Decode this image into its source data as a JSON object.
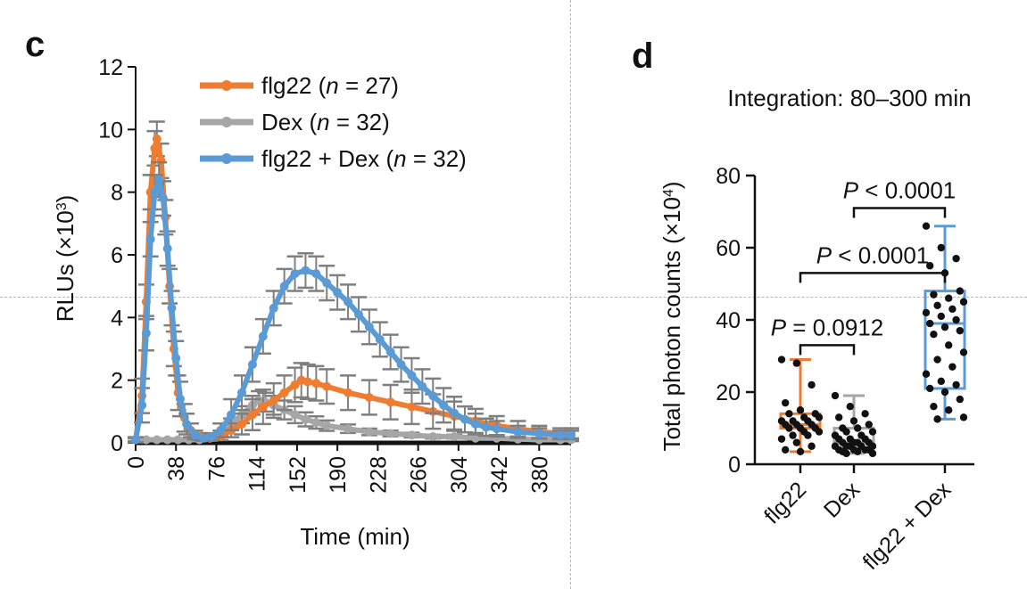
{
  "panels": {
    "c": {
      "letter": "c"
    },
    "d": {
      "letter": "d",
      "subtitle": "Integration: 80–300 min"
    }
  },
  "colors": {
    "flg22": "#ee7d32",
    "dex": "#a6a6a6",
    "flg22_dex": "#5b9bd5",
    "axis": "#111111"
  },
  "chart_data": [
    {
      "type": "line",
      "panel": "c",
      "xlabel": "Time (min)",
      "ylabel": "RLUs (×10³)",
      "ylabel_main": "RLUs (×10",
      "ylabel_sup": "3",
      "ylabel_tail": ")",
      "xlim": [
        0,
        410
      ],
      "ylim": [
        0,
        12
      ],
      "xticks": [
        0,
        38,
        76,
        114,
        152,
        190,
        228,
        266,
        304,
        342,
        380
      ],
      "yticks": [
        0,
        2,
        4,
        6,
        8,
        10,
        12
      ],
      "legend_position": "top-right",
      "series": [
        {
          "key": "flg22",
          "name": "flg22 (n = 27)",
          "label_pre": "flg22 (",
          "label_n": "n",
          "label_post": " = 27)",
          "color": "#ee7d32",
          "points": [
            [
              0,
              0.1
            ],
            [
              6,
              1.5
            ],
            [
              10,
              4.5
            ],
            [
              14,
              8.0
            ],
            [
              18,
              9.4
            ],
            [
              20,
              9.7
            ],
            [
              24,
              9.0
            ],
            [
              28,
              7.2
            ],
            [
              32,
              5.0
            ],
            [
              36,
              3.0
            ],
            [
              40,
              1.6
            ],
            [
              46,
              0.8
            ],
            [
              52,
              0.4
            ],
            [
              60,
              0.2
            ],
            [
              70,
              0.15
            ],
            [
              80,
              0.2
            ],
            [
              90,
              0.4
            ],
            [
              100,
              0.6
            ],
            [
              110,
              0.9
            ],
            [
              120,
              1.15
            ],
            [
              130,
              1.35
            ],
            [
              140,
              1.6
            ],
            [
              150,
              1.85
            ],
            [
              156,
              2.0
            ],
            [
              162,
              1.95
            ],
            [
              170,
              1.9
            ],
            [
              180,
              1.8
            ],
            [
              200,
              1.6
            ],
            [
              220,
              1.45
            ],
            [
              240,
              1.3
            ],
            [
              260,
              1.15
            ],
            [
              280,
              1.0
            ],
            [
              300,
              0.85
            ],
            [
              320,
              0.7
            ],
            [
              340,
              0.55
            ],
            [
              360,
              0.45
            ],
            [
              380,
              0.35
            ],
            [
              400,
              0.3
            ],
            [
              410,
              0.3
            ]
          ],
          "error": 0.55
        },
        {
          "key": "dex",
          "name": "Dex (n = 32)",
          "label_pre": "Dex (",
          "label_n": "n",
          "label_post": " = 32)",
          "color": "#a6a6a6",
          "points": [
            [
              0,
              0.1
            ],
            [
              10,
              0.1
            ],
            [
              20,
              0.1
            ],
            [
              30,
              0.1
            ],
            [
              40,
              0.1
            ],
            [
              50,
              0.1
            ],
            [
              60,
              0.1
            ],
            [
              70,
              0.15
            ],
            [
              80,
              0.3
            ],
            [
              90,
              0.6
            ],
            [
              100,
              0.9
            ],
            [
              110,
              1.2
            ],
            [
              116,
              1.35
            ],
            [
              122,
              1.3
            ],
            [
              130,
              1.2
            ],
            [
              140,
              1.05
            ],
            [
              150,
              0.9
            ],
            [
              160,
              0.75
            ],
            [
              170,
              0.65
            ],
            [
              180,
              0.55
            ],
            [
              200,
              0.45
            ],
            [
              220,
              0.35
            ],
            [
              240,
              0.3
            ],
            [
              260,
              0.25
            ],
            [
              280,
              0.2
            ],
            [
              300,
              0.2
            ],
            [
              320,
              0.15
            ],
            [
              340,
              0.15
            ],
            [
              360,
              0.12
            ],
            [
              380,
              0.1
            ],
            [
              400,
              0.1
            ],
            [
              410,
              0.1
            ]
          ],
          "error": 0.3
        },
        {
          "key": "flg22_dex",
          "name": "flg22 + Dex (n = 32)",
          "label_pre": "flg22 + Dex (",
          "label_n": "n",
          "label_post": " = 32)",
          "color": "#5b9bd5",
          "points": [
            [
              0,
              0.1
            ],
            [
              6,
              1.2
            ],
            [
              10,
              3.5
            ],
            [
              14,
              6.5
            ],
            [
              18,
              8.0
            ],
            [
              22,
              8.4
            ],
            [
              26,
              7.8
            ],
            [
              30,
              6.2
            ],
            [
              34,
              4.3
            ],
            [
              38,
              2.7
            ],
            [
              42,
              1.4
            ],
            [
              48,
              0.6
            ],
            [
              56,
              0.25
            ],
            [
              64,
              0.15
            ],
            [
              72,
              0.2
            ],
            [
              80,
              0.4
            ],
            [
              90,
              0.9
            ],
            [
              100,
              1.6
            ],
            [
              110,
              2.5
            ],
            [
              120,
              3.4
            ],
            [
              130,
              4.3
            ],
            [
              140,
              5.0
            ],
            [
              150,
              5.4
            ],
            [
              160,
              5.5
            ],
            [
              170,
              5.4
            ],
            [
              180,
              5.1
            ],
            [
              190,
              4.8
            ],
            [
              200,
              4.5
            ],
            [
              210,
              4.1
            ],
            [
              220,
              3.7
            ],
            [
              230,
              3.3
            ],
            [
              240,
              2.9
            ],
            [
              250,
              2.5
            ],
            [
              260,
              2.15
            ],
            [
              270,
              1.8
            ],
            [
              280,
              1.5
            ],
            [
              290,
              1.2
            ],
            [
              300,
              0.95
            ],
            [
              310,
              0.75
            ],
            [
              320,
              0.6
            ],
            [
              330,
              0.5
            ],
            [
              340,
              0.45
            ],
            [
              360,
              0.35
            ],
            [
              380,
              0.3
            ],
            [
              400,
              0.25
            ],
            [
              410,
              0.25
            ]
          ],
          "error": 0.55
        }
      ]
    },
    {
      "type": "box",
      "panel": "d",
      "ylabel": "Total photon counts (×10⁴)",
      "ylabel_main": "Total photon counts (×10",
      "ylabel_sup": "4",
      "ylabel_tail": ")",
      "ylim": [
        0,
        80
      ],
      "yticks": [
        0,
        20,
        40,
        60,
        80
      ],
      "categories": [
        "flg22",
        "Dex",
        "flg22 + Dex"
      ],
      "groups": [
        {
          "key": "flg22",
          "color": "#ee7d32",
          "min": 3.5,
          "q1": 10,
          "median": 11,
          "q3": 14,
          "max": 29,
          "points": [
            29,
            28,
            22,
            17,
            15,
            14,
            14,
            13,
            13,
            12,
            12,
            12,
            11,
            11,
            11,
            10,
            10,
            10,
            9,
            9,
            8,
            8,
            7,
            6,
            5,
            4,
            3.5
          ]
        },
        {
          "key": "dex",
          "color": "#a6a6a6",
          "min": 3,
          "q1": 4.5,
          "median": 6,
          "q3": 10,
          "max": 19,
          "points": [
            19,
            16,
            14,
            13,
            12,
            11,
            10,
            10,
            9,
            9,
            8,
            8,
            7,
            7,
            7,
            6,
            6,
            6,
            6,
            5,
            5,
            5,
            5,
            5,
            4,
            4,
            4,
            4,
            3.5,
            3.5,
            3,
            3
          ]
        },
        {
          "key": "flg22_dex",
          "color": "#5b9bd5",
          "min": 12.5,
          "q1": 21,
          "median": 39,
          "q3": 48,
          "max": 66,
          "points": [
            66,
            60,
            57,
            55,
            53,
            48,
            47,
            46,
            45,
            44,
            43,
            42,
            41,
            40,
            39,
            38,
            37,
            36,
            33,
            31,
            29,
            27,
            25,
            23,
            22,
            21,
            20,
            18,
            16,
            15,
            13,
            12.5
          ]
        }
      ],
      "comparisons": [
        {
          "from": 0,
          "to": 1,
          "y": 33,
          "p_pre": "P",
          "p_op": " = ",
          "p_val": "0.0912"
        },
        {
          "from": 0,
          "to": 2,
          "y": 53,
          "p_pre": "P",
          "p_op": " < ",
          "p_val": "0.0001"
        },
        {
          "from": 1,
          "to": 2,
          "y": 71,
          "p_pre": "P",
          "p_op": " < ",
          "p_val": "0.0001"
        }
      ]
    }
  ]
}
